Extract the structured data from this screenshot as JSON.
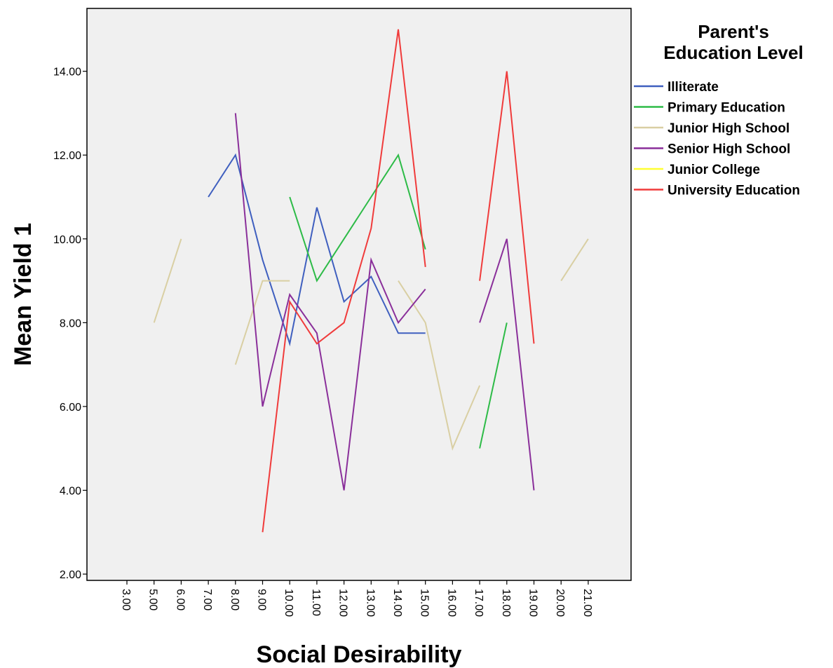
{
  "chart_data": {
    "type": "line",
    "title": "",
    "xlabel": "Social Desirability",
    "ylabel": "Mean Yield 1",
    "categories": [
      "3.00",
      "5.00",
      "6.00",
      "7.00",
      "8.00",
      "9.00",
      "10.00",
      "11.00",
      "12.00",
      "13.00",
      "14.00",
      "15.00",
      "16.00",
      "17.00",
      "18.00",
      "19.00",
      "20.00",
      "21.00"
    ],
    "ylim": [
      1.85,
      15.5
    ],
    "yticks": [
      2,
      4,
      6,
      8,
      10,
      12,
      14
    ],
    "ytick_labels": [
      "2.00",
      "4.00",
      "6.00",
      "8.00",
      "10.00",
      "12.00",
      "14.00"
    ],
    "grid": false,
    "legend": {
      "title_lines": [
        "Parent's",
        "Education Level"
      ],
      "position": "right"
    },
    "series": [
      {
        "name": "Illiterate",
        "color": "#3f5fbf",
        "values": [
          null,
          null,
          null,
          11,
          12,
          9.5,
          7.5,
          10.75,
          8.5,
          9.1,
          7.75,
          7.75,
          null,
          null,
          null,
          null,
          null,
          null
        ]
      },
      {
        "name": "Primary Education",
        "color": "#2dbb47",
        "values": [
          null,
          null,
          null,
          null,
          null,
          null,
          11,
          9,
          10,
          11,
          12,
          9.75,
          null,
          5,
          8,
          null,
          null,
          null
        ]
      },
      {
        "name": "Junior High School",
        "color": "#d9cfa3",
        "values": [
          null,
          8,
          10,
          null,
          7,
          9,
          9,
          null,
          null,
          null,
          9,
          8,
          5,
          6.5,
          null,
          null,
          9,
          10
        ]
      },
      {
        "name": "Senior High School",
        "color": "#8a2f9a",
        "values": [
          null,
          null,
          null,
          null,
          13,
          6,
          8.67,
          7.75,
          4,
          9.5,
          8,
          8.8,
          null,
          8,
          10,
          4,
          null,
          null
        ]
      },
      {
        "name": "Junior College",
        "color": "#ffff33",
        "values": [
          null,
          null,
          null,
          null,
          null,
          null,
          null,
          null,
          null,
          null,
          null,
          null,
          null,
          null,
          null,
          null,
          null,
          null
        ]
      },
      {
        "name": "University Education",
        "color": "#f03b3b",
        "values": [
          null,
          null,
          null,
          null,
          null,
          3,
          8.5,
          7.5,
          8,
          10.25,
          15,
          9.33,
          null,
          9,
          14,
          7.5,
          null,
          null
        ]
      }
    ],
    "plot_background": "#f0f0f0"
  }
}
